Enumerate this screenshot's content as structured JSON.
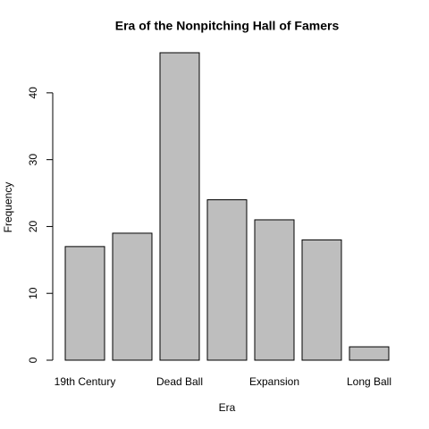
{
  "chart_data": {
    "type": "bar",
    "title": "Era of the Nonpitching Hall of Famers",
    "xlabel": "Era",
    "ylabel": "Frequency",
    "categories": [
      "19th Century",
      null,
      "Dead Ball",
      null,
      "Expansion",
      null,
      "Long Ball"
    ],
    "values": [
      17,
      19,
      46,
      24,
      21,
      18,
      2
    ],
    "color": "#bebebe",
    "ylim": [
      0,
      46
    ],
    "yticks": [
      0,
      10,
      20,
      30,
      40
    ],
    "grid": false
  }
}
